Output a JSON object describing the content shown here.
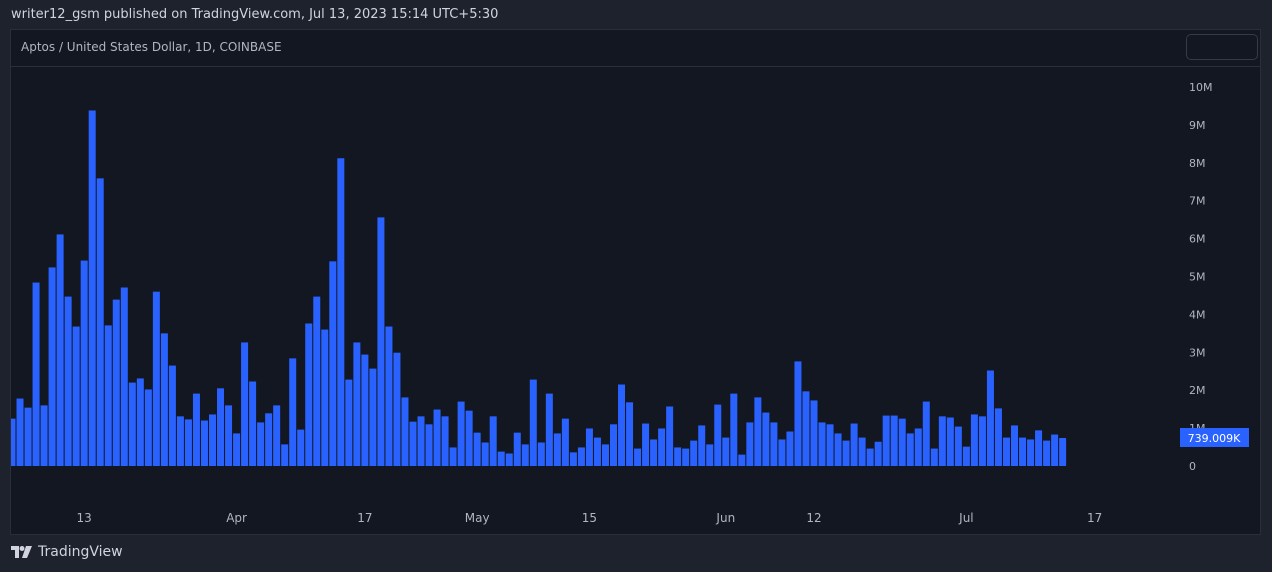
{
  "header": {
    "publisher_text": "writer12_gsm published on TradingView.com, Jul 13, 2023 15:14 UTC+5:30"
  },
  "panel": {
    "symbol_title": "Aptos / United States Dollar, 1D, COINBASE"
  },
  "footer": {
    "brand": "TradingView"
  },
  "colors": {
    "bar": "#2962ff",
    "background": "#131722",
    "page": "#1e222d",
    "axis_text": "#b2b5be"
  },
  "chart_data": {
    "type": "bar",
    "title": "",
    "xlabel": "",
    "ylabel": "",
    "x": {
      "first": "2023-03-04",
      "last": "2023-07-13",
      "interval": "1D"
    },
    "ylim": [
      0,
      10000000
    ],
    "grid": false,
    "values_millions": [
      1.25,
      1.78,
      1.54,
      4.84,
      1.6,
      5.24,
      6.11,
      4.47,
      3.68,
      5.42,
      9.38,
      7.59,
      3.71,
      4.39,
      4.71,
      2.2,
      2.31,
      2.02,
      4.6,
      3.5,
      2.65,
      1.31,
      1.23,
      1.91,
      1.2,
      1.36,
      2.05,
      1.6,
      0.86,
      3.26,
      2.23,
      1.15,
      1.39,
      1.6,
      0.57,
      2.84,
      0.96,
      3.76,
      4.47,
      3.6,
      5.4,
      8.12,
      2.28,
      3.26,
      2.94,
      2.57,
      6.56,
      3.68,
      2.99,
      1.81,
      1.17,
      1.31,
      1.1,
      1.49,
      1.31,
      0.49,
      1.7,
      1.46,
      0.88,
      0.62,
      1.31,
      0.38,
      0.33,
      0.88,
      0.57,
      2.28,
      0.62,
      1.91,
      0.86,
      1.25,
      0.36,
      0.49,
      0.99,
      0.75,
      0.57,
      1.1,
      2.15,
      1.68,
      0.46,
      1.12,
      0.7,
      0.99,
      1.57,
      0.49,
      0.46,
      0.67,
      1.07,
      0.57,
      1.62,
      0.75,
      1.91,
      0.3,
      1.15,
      1.81,
      1.41,
      1.15,
      0.7,
      0.91,
      2.76,
      1.97,
      1.73,
      1.15,
      1.1,
      0.86,
      0.67,
      1.12,
      0.75,
      0.46,
      0.64,
      1.33,
      1.33,
      1.25,
      0.86,
      0.99,
      1.7,
      0.46,
      1.31,
      1.28,
      1.04,
      0.51,
      1.36,
      1.31,
      2.52,
      1.52,
      0.75,
      1.07,
      0.75,
      0.7,
      0.94,
      0.67,
      0.83,
      0.739
    ],
    "y_ticks": [
      {
        "label": "0",
        "value": 0
      },
      {
        "label": "1M",
        "value": 1
      },
      {
        "label": "2M",
        "value": 2
      },
      {
        "label": "3M",
        "value": 3
      },
      {
        "label": "4M",
        "value": 4
      },
      {
        "label": "5M",
        "value": 5
      },
      {
        "label": "6M",
        "value": 6
      },
      {
        "label": "7M",
        "value": 7
      },
      {
        "label": "8M",
        "value": 8
      },
      {
        "label": "9M",
        "value": 9
      },
      {
        "label": "10M",
        "value": 10
      }
    ],
    "x_ticks": [
      {
        "label": "13",
        "date": "2023-03-13"
      },
      {
        "label": "Apr",
        "date": "2023-04-01"
      },
      {
        "label": "17",
        "date": "2023-04-17"
      },
      {
        "label": "May",
        "date": "2023-05-01"
      },
      {
        "label": "15",
        "date": "2023-05-15"
      },
      {
        "label": "Jun",
        "date": "2023-06-01"
      },
      {
        "label": "12",
        "date": "2023-06-12"
      },
      {
        "label": "Jul",
        "date": "2023-07-01"
      },
      {
        "label": "17",
        "date": "2023-07-17"
      }
    ],
    "last_value_label": "739.009K"
  }
}
